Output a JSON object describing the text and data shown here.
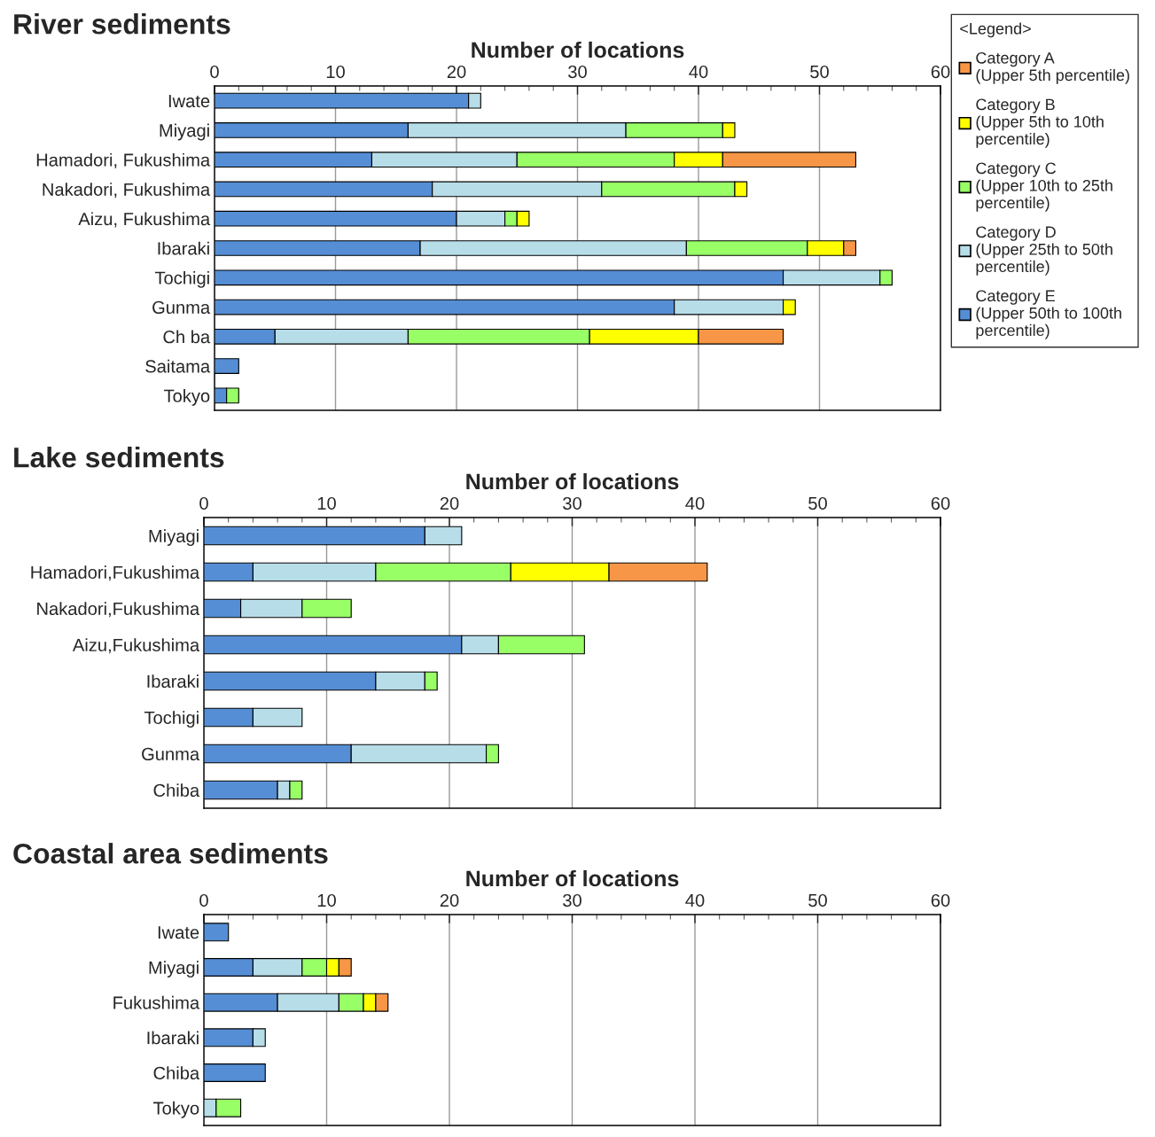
{
  "chart_data": [
    {
      "type": "bar",
      "orientation": "horizontal",
      "stacked": true,
      "title": "River sediments",
      "xlabel": "Number of locations",
      "legend_title": "<Legend>",
      "legend": "right",
      "grid": "x",
      "categories": [
        "Iwate",
        "Miyagi",
        "Hamadori, Fukushima",
        "Nakadori, Fukushima",
        "Aizu, Fukushima",
        "Ibaraki",
        "Tochigi",
        "Gunma",
        "Ch ba",
        "Saitama",
        "Tokyo"
      ],
      "xlim": [
        0,
        60
      ],
      "xticks": [
        0,
        10,
        20,
        30,
        40,
        50,
        60
      ],
      "series": [
        {
          "name": "Category E\n(Upper 50th to 100th\npercentile)",
          "color": "#558ed5",
          "values": [
            21,
            16,
            13,
            18,
            20,
            17,
            47,
            38,
            5,
            2,
            1
          ]
        },
        {
          "name": "Category D\n(Upper 25th to 50th\npercentile)",
          "color": "#b7dde8",
          "values": [
            1,
            18,
            12,
            14,
            4,
            22,
            8,
            9,
            11,
            0,
            0
          ]
        },
        {
          "name": "Category C\n(Upper 10th to 25th\npercentile)",
          "color": "#99ff66",
          "values": [
            0,
            8,
            13,
            11,
            1,
            10,
            1,
            0,
            15,
            0,
            1
          ]
        },
        {
          "name": "Category B\n(Upper 5th to 10th\npercentile)",
          "color": "#ffff00",
          "values": [
            0,
            1,
            4,
            1,
            1,
            3,
            0,
            1,
            9,
            0,
            0
          ]
        },
        {
          "name": "Category A\n(Upper 5th percentile)",
          "color": "#f79646",
          "values": [
            0,
            0,
            11,
            0,
            0,
            1,
            0,
            0,
            7,
            0,
            0
          ]
        }
      ]
    },
    {
      "type": "bar",
      "orientation": "horizontal",
      "stacked": true,
      "title": "Lake sediments",
      "xlabel": "Number of locations",
      "grid": "x",
      "categories": [
        "Miyagi",
        "Hamadori,Fukushima",
        "Nakadori,Fukushima",
        "Aizu,Fukushima",
        "Ibaraki",
        "Tochigi",
        "Gunma",
        "Chiba"
      ],
      "xlim": [
        0,
        60
      ],
      "xticks": [
        0,
        10,
        20,
        30,
        40,
        50,
        60
      ],
      "series": [
        {
          "color": "#558ed5",
          "values": [
            18,
            4,
            3,
            21,
            14,
            4,
            12,
            6
          ]
        },
        {
          "color": "#b7dde8",
          "values": [
            3,
            10,
            5,
            3,
            4,
            4,
            11,
            1
          ]
        },
        {
          "color": "#99ff66",
          "values": [
            0,
            11,
            4,
            7,
            1,
            0,
            1,
            1
          ]
        },
        {
          "color": "#ffff00",
          "values": [
            0,
            8,
            0,
            0,
            0,
            0,
            0,
            0
          ]
        },
        {
          "color": "#f79646",
          "values": [
            0,
            8,
            0,
            0,
            0,
            0,
            0,
            0
          ]
        }
      ]
    },
    {
      "type": "bar",
      "orientation": "horizontal",
      "stacked": true,
      "title": "Coastal area sediments",
      "xlabel": "Number of locations",
      "grid": "x",
      "categories": [
        "Iwate",
        "Miyagi",
        "Fukushima",
        "Ibaraki",
        "Chiba",
        "Tokyo"
      ],
      "xlim": [
        0,
        60
      ],
      "xticks": [
        0,
        10,
        20,
        30,
        40,
        50,
        60
      ],
      "series": [
        {
          "color": "#558ed5",
          "values": [
            2,
            4,
            6,
            4,
            5,
            0
          ]
        },
        {
          "color": "#b7dde8",
          "values": [
            0,
            4,
            5,
            1,
            0,
            1
          ]
        },
        {
          "color": "#99ff66",
          "values": [
            0,
            2,
            2,
            0,
            0,
            2
          ]
        },
        {
          "color": "#ffff00",
          "values": [
            0,
            1,
            1,
            0,
            0,
            0
          ]
        },
        {
          "color": "#f79646",
          "values": [
            0,
            1,
            1,
            0,
            0,
            0
          ]
        }
      ]
    }
  ]
}
